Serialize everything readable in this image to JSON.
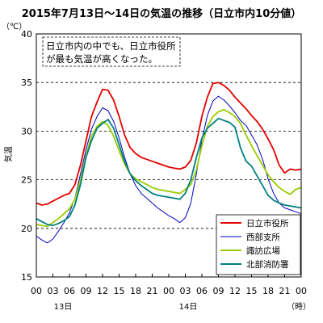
{
  "chart_data": {
    "type": "line",
    "title": "2015年7月13日～14日の気温の推移（日立市内10分値）",
    "ylabel": "気温",
    "yunit": "（℃）",
    "ylim": [
      15,
      40
    ],
    "yticks": [
      "15",
      "20",
      "25",
      "30",
      "35",
      "40"
    ],
    "xlim": [
      0,
      48
    ],
    "xtick_labels": [
      "00",
      "03",
      "06",
      "09",
      "12",
      "15",
      "18",
      "21",
      "00",
      "03",
      "06",
      "09",
      "12",
      "15",
      "18",
      "21",
      "00"
    ],
    "day_labels": [
      "13日",
      "14日"
    ],
    "xunit": "（時）",
    "annotation": [
      "日立市内の中でも、日立市役所",
      "が最も気温が高くなった。"
    ],
    "grid": "horizontal-dashed",
    "legend_position": "bottom-right",
    "x": [
      0,
      1,
      2,
      3,
      4,
      5,
      6,
      7,
      8,
      9,
      10,
      11,
      12,
      13,
      14,
      15,
      16,
      17,
      18,
      19,
      20,
      21,
      22,
      23,
      24,
      25,
      26,
      27,
      28,
      29,
      30,
      31,
      32,
      33,
      34,
      35,
      36,
      37,
      38,
      39,
      40,
      41,
      42,
      43,
      44,
      45,
      46,
      47,
      48
    ],
    "series": [
      {
        "name": "日立市役所",
        "color": "#e60000",
        "values": [
          22.6,
          22.4,
          22.5,
          22.8,
          23.1,
          23.4,
          23.6,
          24.5,
          26.5,
          29.0,
          31.5,
          33.0,
          34.3,
          34.2,
          33.2,
          31.5,
          29.6,
          28.3,
          27.7,
          27.3,
          27.1,
          26.9,
          26.7,
          26.5,
          26.3,
          26.2,
          26.1,
          26.3,
          27.0,
          28.8,
          31.5,
          33.5,
          34.9,
          35.0,
          34.7,
          34.2,
          33.5,
          32.9,
          32.3,
          31.6,
          31.0,
          30.2,
          29.2,
          28.1,
          26.5,
          25.7,
          26.1,
          26.0,
          26.1
        ]
      },
      {
        "name": "西部支所",
        "color": "#0000c0",
        "values": [
          19.2,
          18.8,
          18.5,
          18.9,
          19.7,
          20.6,
          21.6,
          23.1,
          25.6,
          28.1,
          30.2,
          31.5,
          32.4,
          32.1,
          31.0,
          29.3,
          27.3,
          25.6,
          24.4,
          23.6,
          23.1,
          22.6,
          22.1,
          21.7,
          21.3,
          21.0,
          20.6,
          21.1,
          22.6,
          25.6,
          29.1,
          31.6,
          33.1,
          33.6,
          33.2,
          32.6,
          31.9,
          31.1,
          30.6,
          29.6,
          28.6,
          27.1,
          25.1,
          23.6,
          22.6,
          22.1,
          21.9,
          21.7,
          21.5
        ]
      },
      {
        "name": "諏訪広場",
        "color": "#99cc00",
        "values": [
          20.4,
          20.3,
          20.2,
          20.6,
          21.0,
          21.5,
          22.0,
          23.0,
          25.0,
          27.5,
          29.5,
          30.5,
          31.0,
          30.6,
          29.5,
          28.0,
          26.6,
          25.6,
          25.1,
          24.8,
          24.5,
          24.2,
          24.0,
          23.9,
          23.8,
          23.7,
          23.6,
          24.0,
          24.5,
          26.0,
          28.5,
          30.5,
          31.5,
          32.0,
          32.2,
          31.9,
          31.5,
          30.8,
          29.6,
          28.5,
          27.5,
          26.5,
          25.5,
          24.8,
          24.2,
          23.8,
          23.5,
          24.0,
          24.2
        ]
      },
      {
        "name": "北部消防署",
        "color": "#008080",
        "values": [
          21.0,
          20.7,
          20.4,
          20.3,
          20.5,
          20.8,
          21.2,
          22.4,
          24.5,
          27.3,
          29.0,
          30.3,
          30.8,
          31.2,
          30.3,
          28.6,
          26.9,
          25.6,
          24.9,
          24.4,
          24.0,
          23.6,
          23.4,
          23.3,
          23.2,
          23.1,
          23.0,
          23.6,
          25.0,
          27.3,
          29.3,
          30.3,
          30.8,
          31.3,
          31.1,
          30.9,
          30.4,
          28.3,
          26.9,
          26.4,
          25.4,
          24.4,
          23.4,
          22.9,
          22.6,
          22.4,
          22.3,
          22.2,
          22.1
        ]
      }
    ]
  }
}
